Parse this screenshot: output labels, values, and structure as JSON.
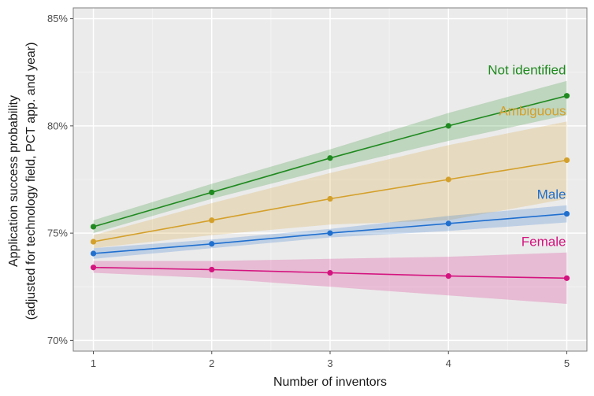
{
  "chart_data": {
    "type": "line",
    "x": [
      1,
      2,
      3,
      4,
      5
    ],
    "xlabel": "Number of inventors",
    "ylabel_lines": [
      "Application success probability",
      "(adjusted for technology field, PCT app. and year)"
    ],
    "xlim": [
      0.83,
      5.17
    ],
    "ylim": [
      69.5,
      85.5
    ],
    "x_ticks": [
      1,
      2,
      3,
      4,
      5
    ],
    "y_ticks": [
      70,
      75,
      80,
      85
    ],
    "y_tick_labels": [
      "70%",
      "75%",
      "80%",
      "85%"
    ],
    "grid": true,
    "series": [
      {
        "name": "Not identified",
        "color": "#1f8a1f",
        "values": [
          75.3,
          76.9,
          78.5,
          80.0,
          81.4
        ],
        "lower": [
          75.0,
          76.6,
          78.0,
          79.3,
          80.5
        ],
        "upper": [
          75.6,
          77.3,
          78.9,
          80.6,
          82.1
        ]
      },
      {
        "name": "Ambiguous",
        "color": "#d4a02a",
        "values": [
          74.6,
          75.6,
          76.6,
          77.5,
          78.4
        ],
        "lower": [
          74.3,
          74.9,
          75.4,
          75.6,
          76.6
        ],
        "upper": [
          74.9,
          76.4,
          77.8,
          79.1,
          80.2
        ]
      },
      {
        "name": "Male",
        "color": "#1f6fcf",
        "values": [
          74.05,
          74.5,
          75.0,
          75.45,
          75.9
        ],
        "lower": [
          73.8,
          74.3,
          74.8,
          75.1,
          75.5
        ],
        "upper": [
          74.3,
          74.7,
          75.2,
          75.8,
          76.3
        ]
      },
      {
        "name": "Female",
        "color": "#d4137f",
        "values": [
          73.4,
          73.3,
          73.15,
          73.0,
          72.9
        ],
        "lower": [
          73.15,
          72.9,
          72.5,
          72.1,
          71.7
        ],
        "upper": [
          73.7,
          73.7,
          73.8,
          73.9,
          74.1
        ]
      }
    ]
  }
}
